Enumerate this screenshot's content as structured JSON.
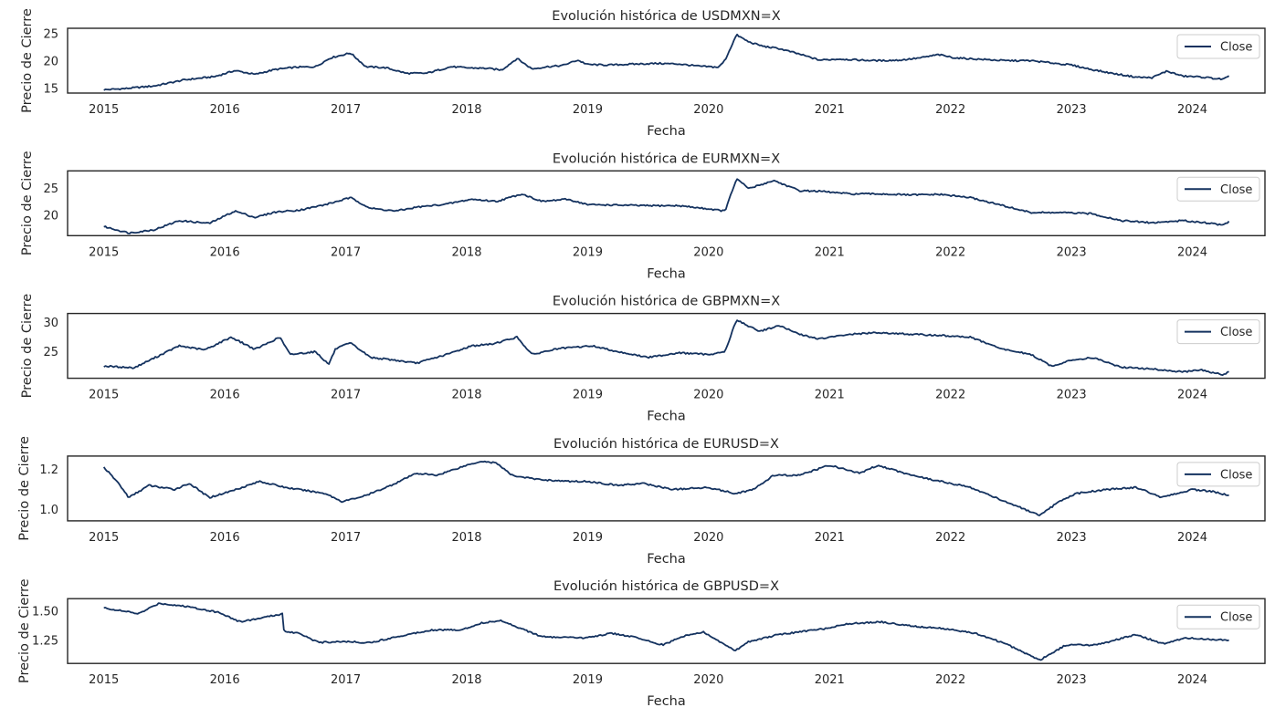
{
  "chart_data": [
    {
      "type": "line",
      "title": "Evolución histórica de USDMXN=X",
      "xlabel": "Fecha",
      "ylabel": "Precio de Cierre",
      "xlim": [
        2014.7,
        2024.6
      ],
      "ylim": [
        14.2,
        26.0
      ],
      "yticks": [
        15,
        20,
        25
      ],
      "xticks": [
        "2015",
        "2016",
        "2017",
        "2018",
        "2019",
        "2020",
        "2021",
        "2022",
        "2023",
        "2024"
      ],
      "legend": {
        "position": "top-right",
        "entries": [
          "Close"
        ]
      },
      "grid": false,
      "series": [
        {
          "name": "Close",
          "color": "#14325f",
          "x": [
            "2015-01-01",
            "2015-03-01",
            "2015-06-01",
            "2015-09-01",
            "2015-12-01",
            "2016-02-01",
            "2016-04-01",
            "2016-06-01",
            "2016-08-01",
            "2016-10-01",
            "2016-11-15",
            "2017-01-15",
            "2017-03-01",
            "2017-05-01",
            "2017-07-01",
            "2017-09-01",
            "2017-11-15",
            "2018-01-01",
            "2018-03-01",
            "2018-04-15",
            "2018-06-01",
            "2018-07-15",
            "2018-09-01",
            "2018-10-15",
            "2018-12-01",
            "2019-01-01",
            "2019-03-01",
            "2019-06-01",
            "2019-08-01",
            "2019-10-01",
            "2019-12-01",
            "2020-02-01",
            "2020-02-20",
            "2020-03-24",
            "2020-05-01",
            "2020-06-15",
            "2020-08-01",
            "2020-10-01",
            "2020-12-01",
            "2021-02-01",
            "2021-04-01",
            "2021-06-01",
            "2021-08-01",
            "2021-10-01",
            "2021-11-25",
            "2022-01-15",
            "2022-03-15",
            "2022-06-15",
            "2022-09-01",
            "2022-11-01",
            "2023-01-01",
            "2023-03-01",
            "2023-05-01",
            "2023-07-15",
            "2023-09-01",
            "2023-10-15",
            "2023-12-01",
            "2024-02-01",
            "2024-04-01",
            "2024-04-20"
          ],
          "y": [
            14.8,
            15.0,
            15.5,
            16.6,
            17.2,
            18.3,
            17.6,
            18.5,
            18.9,
            19.0,
            20.6,
            21.5,
            19.0,
            18.8,
            17.8,
            17.8,
            19.0,
            18.8,
            18.7,
            18.4,
            20.5,
            18.6,
            19.0,
            19.2,
            20.2,
            19.4,
            19.3,
            19.5,
            19.6,
            19.5,
            19.1,
            18.9,
            20.2,
            24.8,
            23.5,
            22.7,
            22.3,
            21.3,
            20.2,
            20.4,
            20.2,
            20.1,
            20.2,
            20.6,
            21.2,
            20.6,
            20.4,
            20.1,
            20.1,
            19.7,
            19.3,
            18.5,
            17.8,
            17.1,
            17.0,
            18.2,
            17.3,
            17.1,
            16.7,
            17.2
          ]
        }
      ]
    },
    {
      "type": "line",
      "title": "Evolución histórica de EURMXN=X",
      "xlabel": "Fecha",
      "ylabel": "Precio de Cierre",
      "xlim": [
        2014.7,
        2024.6
      ],
      "ylim": [
        16.2,
        28.3
      ],
      "yticks": [
        20,
        25
      ],
      "xticks": [
        "2015",
        "2016",
        "2017",
        "2018",
        "2019",
        "2020",
        "2021",
        "2022",
        "2023",
        "2024"
      ],
      "legend": {
        "position": "top-right",
        "entries": [
          "Close"
        ]
      },
      "grid": false,
      "series": [
        {
          "name": "Close",
          "color": "#14325f",
          "x": [
            "2015-01-01",
            "2015-03-15",
            "2015-06-01",
            "2015-08-15",
            "2015-11-15",
            "2016-02-01",
            "2016-04-01",
            "2016-06-01",
            "2016-08-15",
            "2016-11-01",
            "2017-01-15",
            "2017-03-15",
            "2017-06-01",
            "2017-08-01",
            "2017-11-01",
            "2018-01-15",
            "2018-04-01",
            "2018-06-15",
            "2018-08-15",
            "2018-11-01",
            "2019-01-01",
            "2019-04-01",
            "2019-07-01",
            "2019-10-01",
            "2020-01-01",
            "2020-02-20",
            "2020-03-24",
            "2020-05-01",
            "2020-07-15",
            "2020-10-01",
            "2020-12-01",
            "2021-03-01",
            "2021-06-01",
            "2021-09-01",
            "2021-12-01",
            "2022-03-01",
            "2022-06-01",
            "2022-09-01",
            "2022-12-01",
            "2023-03-01",
            "2023-06-01",
            "2023-09-01",
            "2023-12-01",
            "2024-02-01",
            "2024-04-01",
            "2024-04-20"
          ],
          "y": [
            17.9,
            16.7,
            17.3,
            19.0,
            18.5,
            20.8,
            19.6,
            20.6,
            21.0,
            22.0,
            23.3,
            21.3,
            20.8,
            21.5,
            22.1,
            23.0,
            22.6,
            24.0,
            22.6,
            23.0,
            22.0,
            21.9,
            21.8,
            21.8,
            21.2,
            20.8,
            26.8,
            25.0,
            26.5,
            24.6,
            24.5,
            24.0,
            24.0,
            23.8,
            23.9,
            23.3,
            21.9,
            20.5,
            20.5,
            20.3,
            19.0,
            18.6,
            19.0,
            18.7,
            18.2,
            18.8
          ]
        }
      ]
    },
    {
      "type": "line",
      "title": "Evolución histórica de GBPMXN=X",
      "xlabel": "Fecha",
      "ylabel": "Precio de Cierre",
      "xlim": [
        2014.7,
        2024.6
      ],
      "ylim": [
        20.4,
        31.6
      ],
      "yticks": [
        25,
        30
      ],
      "xticks": [
        "2015",
        "2016",
        "2017",
        "2018",
        "2019",
        "2020",
        "2021",
        "2022",
        "2023",
        "2024"
      ],
      "legend": {
        "position": "top-right",
        "entries": [
          "Close"
        ]
      },
      "grid": false,
      "series": [
        {
          "name": "Close",
          "color": "#14325f",
          "x": [
            "2015-01-01",
            "2015-04-01",
            "2015-08-15",
            "2015-11-01",
            "2016-01-20",
            "2016-04-01",
            "2016-06-15",
            "2016-07-15",
            "2016-10-01",
            "2016-11-10",
            "2016-12-01",
            "2017-01-15",
            "2017-03-15",
            "2017-06-01",
            "2017-08-01",
            "2017-11-01",
            "2018-01-15",
            "2018-03-15",
            "2018-06-01",
            "2018-07-15",
            "2018-10-01",
            "2019-01-15",
            "2019-04-01",
            "2019-07-01",
            "2019-10-01",
            "2020-01-01",
            "2020-02-20",
            "2020-03-24",
            "2020-06-01",
            "2020-08-01",
            "2020-10-01",
            "2020-12-01",
            "2021-03-01",
            "2021-06-01",
            "2021-09-01",
            "2021-12-01",
            "2022-03-01",
            "2022-06-01",
            "2022-09-01",
            "2022-11-01",
            "2023-01-01",
            "2023-03-01",
            "2023-06-01",
            "2023-09-01",
            "2023-12-01",
            "2024-02-01",
            "2024-04-01",
            "2024-04-20"
          ],
          "y": [
            22.5,
            22.2,
            26.0,
            25.3,
            27.5,
            25.4,
            27.5,
            24.5,
            25.0,
            22.8,
            25.5,
            26.5,
            24.0,
            23.5,
            23.0,
            24.5,
            26.0,
            26.3,
            27.5,
            24.5,
            25.5,
            26.0,
            25.0,
            24.0,
            24.8,
            24.5,
            25.0,
            30.5,
            28.5,
            29.5,
            28.0,
            27.2,
            28.0,
            28.3,
            28.0,
            27.8,
            27.5,
            25.5,
            24.5,
            22.5,
            23.5,
            24.0,
            22.3,
            22.0,
            21.5,
            21.8,
            21.0,
            21.5
          ]
        }
      ]
    },
    {
      "type": "line",
      "title": "Evolución histórica de EURUSD=X",
      "xlabel": "Fecha",
      "ylabel": "Precio de Cierre",
      "xlim": [
        2014.7,
        2024.6
      ],
      "ylim": [
        0.945,
        1.265
      ],
      "yticks": [
        1.0,
        1.2
      ],
      "xticks": [
        "2015",
        "2016",
        "2017",
        "2018",
        "2019",
        "2020",
        "2021",
        "2022",
        "2023",
        "2024"
      ],
      "legend": {
        "position": "top-right",
        "entries": [
          "Close"
        ]
      },
      "grid": false,
      "series": [
        {
          "name": "Close",
          "color": "#14325f",
          "x": [
            "2015-01-01",
            "2015-02-15",
            "2015-03-15",
            "2015-05-15",
            "2015-08-01",
            "2015-09-15",
            "2015-11-15",
            "2016-01-15",
            "2016-04-15",
            "2016-07-01",
            "2016-11-01",
            "2016-12-20",
            "2017-03-01",
            "2017-05-15",
            "2017-08-01",
            "2017-10-01",
            "2018-01-01",
            "2018-02-15",
            "2018-04-01",
            "2018-05-15",
            "2018-08-01",
            "2018-11-01",
            "2019-01-01",
            "2019-04-01",
            "2019-06-15",
            "2019-09-15",
            "2020-01-01",
            "2020-03-20",
            "2020-05-15",
            "2020-07-15",
            "2020-10-01",
            "2021-01-01",
            "2021-03-30",
            "2021-05-25",
            "2021-08-15",
            "2021-11-01",
            "2022-01-01",
            "2022-03-01",
            "2022-05-15",
            "2022-07-15",
            "2022-09-27",
            "2022-11-15",
            "2023-01-15",
            "2023-04-15",
            "2023-07-15",
            "2023-10-01",
            "2024-01-01",
            "2024-03-01",
            "2024-04-20"
          ],
          "y": [
            1.21,
            1.13,
            1.06,
            1.12,
            1.1,
            1.13,
            1.06,
            1.09,
            1.14,
            1.11,
            1.08,
            1.04,
            1.07,
            1.12,
            1.18,
            1.17,
            1.22,
            1.24,
            1.23,
            1.17,
            1.15,
            1.14,
            1.14,
            1.12,
            1.13,
            1.1,
            1.11,
            1.08,
            1.1,
            1.17,
            1.17,
            1.22,
            1.18,
            1.22,
            1.18,
            1.15,
            1.13,
            1.11,
            1.06,
            1.02,
            0.97,
            1.03,
            1.08,
            1.1,
            1.11,
            1.06,
            1.1,
            1.09,
            1.07
          ]
        }
      ]
    },
    {
      "type": "line",
      "title": "Evolución histórica de GBPUSD=X",
      "xlabel": "Fecha",
      "ylabel": "Precio de Cierre",
      "xlim": [
        2014.7,
        2024.6
      ],
      "ylim": [
        1.05,
        1.61
      ],
      "yticks": [
        1.25,
        1.5
      ],
      "xticks": [
        "2015",
        "2016",
        "2017",
        "2018",
        "2019",
        "2020",
        "2021",
        "2022",
        "2023",
        "2024"
      ],
      "legend": {
        "position": "top-right",
        "entries": [
          "Close"
        ]
      },
      "grid": false,
      "series": [
        {
          "name": "Close",
          "color": "#14325f",
          "x": [
            "2015-01-01",
            "2015-04-15",
            "2015-06-15",
            "2015-09-15",
            "2015-12-15",
            "2016-02-15",
            "2016-04-15",
            "2016-06-23",
            "2016-06-27",
            "2016-08-15",
            "2016-10-10",
            "2016-12-15",
            "2017-03-15",
            "2017-06-01",
            "2017-09-15",
            "2017-12-15",
            "2018-02-15",
            "2018-04-15",
            "2018-08-15",
            "2018-12-15",
            "2019-03-15",
            "2019-05-15",
            "2019-08-15",
            "2019-10-20",
            "2019-12-15",
            "2020-03-20",
            "2020-05-01",
            "2020-08-01",
            "2020-12-15",
            "2021-02-15",
            "2021-06-01",
            "2021-09-15",
            "2021-12-15",
            "2022-03-15",
            "2022-06-15",
            "2022-09-27",
            "2022-12-15",
            "2023-03-15",
            "2023-07-15",
            "2023-10-01",
            "2023-12-15",
            "2024-02-15",
            "2024-04-20"
          ],
          "y": [
            1.53,
            1.48,
            1.57,
            1.54,
            1.49,
            1.41,
            1.44,
            1.48,
            1.33,
            1.31,
            1.23,
            1.24,
            1.23,
            1.28,
            1.34,
            1.34,
            1.4,
            1.42,
            1.28,
            1.27,
            1.31,
            1.28,
            1.21,
            1.29,
            1.32,
            1.16,
            1.24,
            1.3,
            1.35,
            1.39,
            1.41,
            1.37,
            1.35,
            1.31,
            1.22,
            1.08,
            1.21,
            1.21,
            1.3,
            1.22,
            1.27,
            1.26,
            1.25
          ]
        }
      ]
    }
  ]
}
